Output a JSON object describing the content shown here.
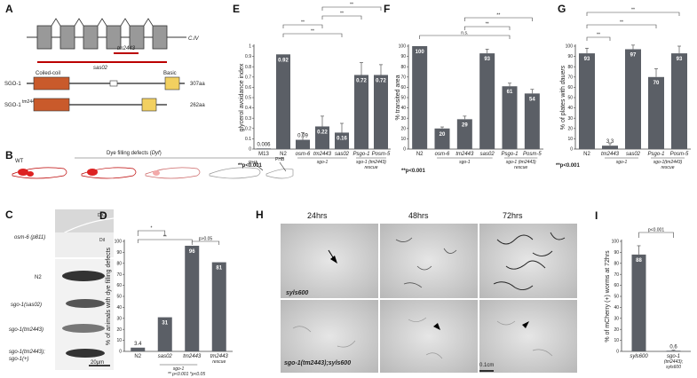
{
  "panels": {
    "A": {
      "letter": "A",
      "gene_chrom": "C.IV",
      "allele_tm": "tm2443",
      "allele_sas": "sas02",
      "protein1": {
        "name": "SGO-1",
        "length": "307aa",
        "domain1": "Coiled-coil",
        "domain2": "Basic"
      },
      "protein2": {
        "name": "SGO-1",
        "sup": "tm2443",
        "length": "262aa"
      }
    },
    "B": {
      "letter": "B",
      "wt": "WT",
      "title": "Dye filling defects (",
      "title_it": "Dyf",
      "title_end": ")",
      "pha": "PHA",
      "phb": "PHB"
    },
    "C": {
      "letter": "C",
      "dic": "DIC",
      "dii": "DiI",
      "scale": "20µm",
      "rows": [
        "osm-6 (p811)",
        "N2",
        "sgo-1(sas02)",
        "sgo-1(tm2443)",
        "sgo-1(tm2443);",
        "sgo-1(+)"
      ]
    },
    "H": {
      "letter": "H",
      "times": [
        "24hrs",
        "48hrs",
        "72hrs"
      ],
      "row1": "syls600",
      "row2": "sgo-1(tm2443);syls600",
      "scale": "0.1cm"
    }
  },
  "chart_data": [
    {
      "id": "D",
      "letter": "D",
      "type": "bar",
      "ylabel": "% of animals with dye filling defects",
      "ylim": [
        0,
        100
      ],
      "yticks": [
        0,
        10,
        20,
        30,
        40,
        50,
        60,
        70,
        80,
        90,
        100
      ],
      "categories": [
        "N2",
        "sas02",
        "tm2443",
        "tm2443"
      ],
      "values": [
        3.4,
        31,
        96,
        81
      ],
      "value_labels": [
        "3.4",
        "31",
        "96",
        "81"
      ],
      "sub1": "rescue",
      "group_label": "sgo-1",
      "sig": [
        "*",
        "**",
        "p>0.05"
      ],
      "footnote": "** p<0.001 *p<0.05"
    },
    {
      "id": "E",
      "letter": "E",
      "type": "bar",
      "ylabel": "glycerol avoidance index",
      "ylim": [
        0,
        1
      ],
      "yticks": [
        "0",
        "0.1",
        "0.2",
        "0.3",
        "0.4",
        "0.5",
        "0.6",
        "0.7",
        "0.8",
        "0.9",
        "1"
      ],
      "categories": [
        "M13",
        "N2",
        "osm-6",
        "tm2443",
        "sas02",
        "Psgo-1",
        "Posm-5"
      ],
      "values": [
        0.006,
        0.92,
        0.09,
        0.22,
        0.16,
        0.72,
        0.72
      ],
      "value_labels": [
        "0.006",
        "0.92",
        "0.09",
        "0.22",
        "0.16",
        "0.72",
        "0.72"
      ],
      "errors": [
        0,
        0,
        0.07,
        0.1,
        0.09,
        0.12,
        0.1
      ],
      "group_label": "sgo-1",
      "rescue_label": "sgo-1 (tm2443)",
      "rescue_word": "rescue",
      "sig": [
        "**",
        "**",
        "**",
        "**"
      ],
      "footnote": "**p<0.001"
    },
    {
      "id": "F",
      "letter": "F",
      "type": "bar",
      "ylabel": "% transited area",
      "ylim": [
        0,
        100
      ],
      "yticks": [
        0,
        10,
        20,
        30,
        40,
        50,
        60,
        70,
        80,
        90,
        100
      ],
      "categories": [
        "N2",
        "osm-6",
        "tm2443",
        "sas02",
        "Psgo-1",
        "Posm-5"
      ],
      "values": [
        100,
        20,
        29,
        93,
        61,
        54
      ],
      "value_labels": [
        "100",
        "20",
        "29",
        "93",
        "61",
        "54"
      ],
      "errors": [
        0,
        1.5,
        3,
        4,
        3,
        4
      ],
      "group_label": "sgo-1",
      "rescue_label": "sgo-1 (tm2443)",
      "rescue_word": "rescue",
      "sig": [
        "n.s.",
        "**",
        "**"
      ],
      "footnote": "**p<0.001"
    },
    {
      "id": "G",
      "letter": "G",
      "type": "bar",
      "ylabel": "% of plates with ",
      "ylabel_it": "dauers",
      "ylim": [
        0,
        100
      ],
      "yticks": [
        0,
        10,
        20,
        30,
        40,
        50,
        60,
        70,
        80,
        90,
        100
      ],
      "categories": [
        "N2",
        "tm2443",
        "sas02",
        "Psgo-1",
        "Posm-5"
      ],
      "values": [
        93,
        3.3,
        97,
        70,
        93
      ],
      "value_labels": [
        "93",
        "3.3",
        "97",
        "70",
        "93"
      ],
      "errors": [
        5,
        2,
        4,
        8,
        7
      ],
      "group_label": "sgo-1",
      "rescue_label": "sgo-1(tm2443)",
      "rescue_word": "rescue",
      "sig": [
        "**",
        "**",
        "**"
      ],
      "footnote": "**p<0.001"
    },
    {
      "id": "I",
      "letter": "I",
      "type": "bar",
      "ylabel": "% of mCherry (+) worms at 72hrs",
      "ylim": [
        0,
        100
      ],
      "yticks": [
        0,
        10,
        20,
        30,
        40,
        50,
        60,
        70,
        80,
        90,
        100
      ],
      "categories": [
        "syls600",
        "sgo-1"
      ],
      "values": [
        88,
        0.6
      ],
      "value_labels": [
        "88",
        "0.6"
      ],
      "errors": [
        8,
        0.5
      ],
      "cat2_lines": [
        "(tm2443);",
        "syls600"
      ],
      "sig": [
        "p<0.001"
      ]
    }
  ]
}
